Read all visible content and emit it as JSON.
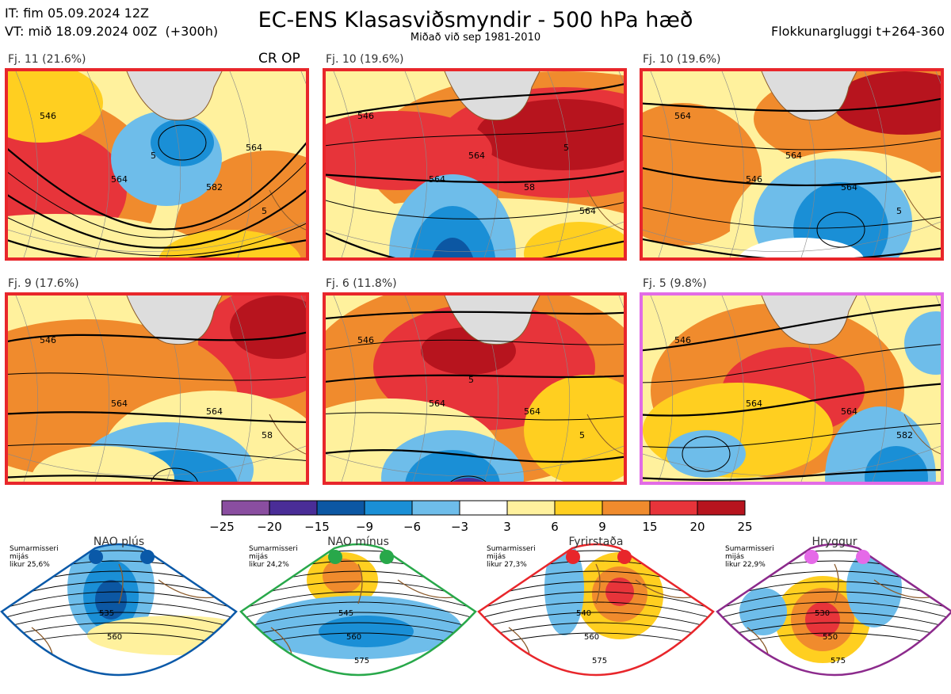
{
  "header": {
    "issue_time": "IT: fim 05.09.2024 12Z",
    "valid_time": "VT: mið 18.09.2024 00Z",
    "lead": "(+300h)",
    "title": "EC-ENS Klasasviðsmyndir - 500 hPa hæð",
    "subtitle": "Miðað við sep 1981-2010",
    "window": "Flokkunargluggi t+264-360"
  },
  "operational_marker": "CR OP",
  "panels": [
    {
      "label": "Fj. 11 (21.6%)",
      "frame_color": "#e8262b",
      "contours": [
        "546",
        "564",
        "582",
        "5",
        "5",
        "564"
      ]
    },
    {
      "label": "Fj. 10 (19.6%)",
      "frame_color": "#e8262b",
      "contours": [
        "546",
        "564",
        "58",
        "564",
        "564",
        "5"
      ]
    },
    {
      "label": "Fj. 10 (19.6%)",
      "frame_color": "#e8262b",
      "contours": [
        "564",
        "546",
        "564",
        "5",
        "564"
      ]
    },
    {
      "label": "Fj. 9 (17.6%)",
      "frame_color": "#e8262b",
      "contours": [
        "546",
        "564",
        "564",
        "58"
      ]
    },
    {
      "label": "Fj. 6 (11.8%)",
      "frame_color": "#e8262b",
      "contours": [
        "546",
        "564",
        "564",
        "5",
        "5"
      ]
    },
    {
      "label": "Fj. 5 (9.8%)",
      "frame_color": "#e26ce6",
      "contours": [
        "546",
        "564",
        "564",
        "582"
      ]
    }
  ],
  "colorbar": {
    "ticks": [
      "−25",
      "−20",
      "−15",
      "−9",
      "−6",
      "−3",
      "3",
      "6",
      "9",
      "15",
      "20",
      "25"
    ],
    "colors": [
      "#8a4ea0",
      "#4a2d97",
      "#0c57a3",
      "#1a8fd6",
      "#6ebdea",
      "#ffffff",
      "#fff19d",
      "#ffcf20",
      "#f08b2d",
      "#e7343a",
      "#b7141e"
    ]
  },
  "regimes": [
    {
      "name": "NAO plús",
      "note": [
        "Sumarmisseri",
        "mijás",
        "likur 25,6%"
      ],
      "frame_color": "#0a59a8",
      "dot_color": "#0a59a8",
      "contours": [
        "535",
        "560"
      ]
    },
    {
      "name": "NAO mínus",
      "note": [
        "Sumarmisseri",
        "mijás",
        "likur 24,2%"
      ],
      "frame_color": "#28a84a",
      "dot_color": "#28a84a",
      "contours": [
        "545",
        "560",
        "575"
      ]
    },
    {
      "name": "Fyrirstaða",
      "note": [
        "Sumarmisseri",
        "mijás",
        "likur 27,3%"
      ],
      "frame_color": "#e8262b",
      "dot_color": "#e8262b",
      "contours": [
        "540",
        "560",
        "575"
      ]
    },
    {
      "name": "Hryggur",
      "note": [
        "Sumarmisseri",
        "mijás",
        "likur 22,9%"
      ],
      "frame_color": "#8c2a8c",
      "dot_color": "#e56ae8",
      "contours": [
        "530",
        "550",
        "575"
      ]
    }
  ]
}
